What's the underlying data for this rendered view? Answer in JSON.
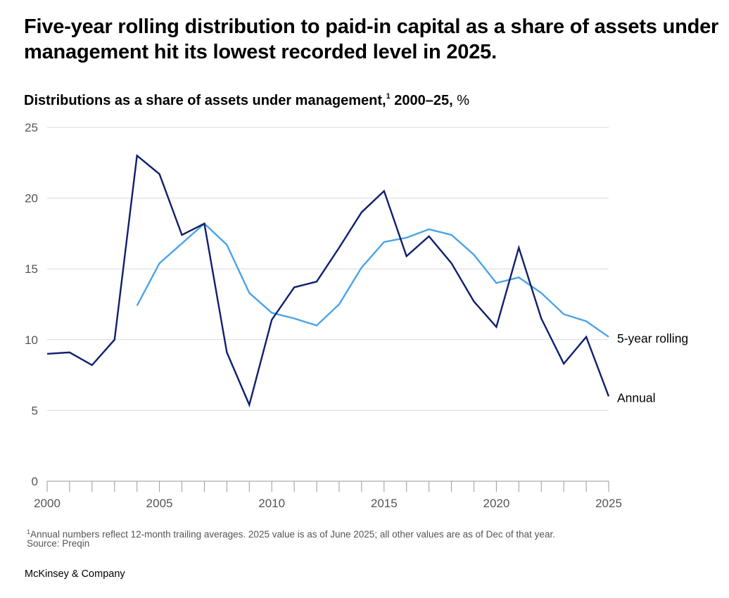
{
  "title": "Five-year rolling distribution to paid-in capital as a share of assets under management hit its lowest recorded level in 2025.",
  "subtitle": {
    "main": "Distributions as a share of assets under management,",
    "sup": "1",
    "range": " 2000–25,",
    "unit": " %"
  },
  "footnote": {
    "marker": "1",
    "text": "Annual numbers reflect 12-month trailing averages. 2025 value is as of June 2025; all other values are as of Dec of that year."
  },
  "source": "Source: Preqin",
  "brand": "McKinsey & Company",
  "chart_data": {
    "type": "line",
    "title": "Distributions as a share of assets under management, 2000–25, %",
    "xlabel": "",
    "ylabel": "",
    "xlim": [
      2000,
      2025
    ],
    "ylim": [
      0,
      25
    ],
    "y_ticks": [
      0,
      5,
      10,
      15,
      20,
      25
    ],
    "x_tick_labels": [
      2000,
      2005,
      2010,
      2015,
      2020,
      2025
    ],
    "grid": "horizontal",
    "legend": "inline labels at line ends (right)",
    "series": [
      {
        "name": "5-year rolling",
        "color": "#4aa3e8",
        "x": [
          2004,
          2005,
          2006,
          2007,
          2008,
          2009,
          2010,
          2011,
          2012,
          2013,
          2014,
          2015,
          2016,
          2017,
          2018,
          2019,
          2020,
          2021,
          2022,
          2023,
          2024,
          2025
        ],
        "values": [
          12.4,
          15.4,
          16.8,
          18.2,
          16.7,
          13.3,
          11.9,
          11.5,
          11.0,
          12.5,
          15.1,
          16.9,
          17.2,
          17.8,
          17.4,
          16.0,
          14.0,
          14.4,
          13.3,
          11.8,
          11.3,
          10.2
        ]
      },
      {
        "name": "Annual",
        "color": "#0f1f6e",
        "x": [
          2000,
          2001,
          2002,
          2003,
          2004,
          2005,
          2006,
          2007,
          2008,
          2009,
          2010,
          2011,
          2012,
          2013,
          2014,
          2015,
          2016,
          2017,
          2018,
          2019,
          2020,
          2021,
          2022,
          2023,
          2024,
          2025
        ],
        "values": [
          9.0,
          9.1,
          8.2,
          10.0,
          23.0,
          21.7,
          17.4,
          18.2,
          9.1,
          5.4,
          11.4,
          13.7,
          14.1,
          16.5,
          19.0,
          20.5,
          15.9,
          17.3,
          15.4,
          12.7,
          10.9,
          16.5,
          11.5,
          8.3,
          10.2,
          6.0
        ]
      }
    ]
  }
}
